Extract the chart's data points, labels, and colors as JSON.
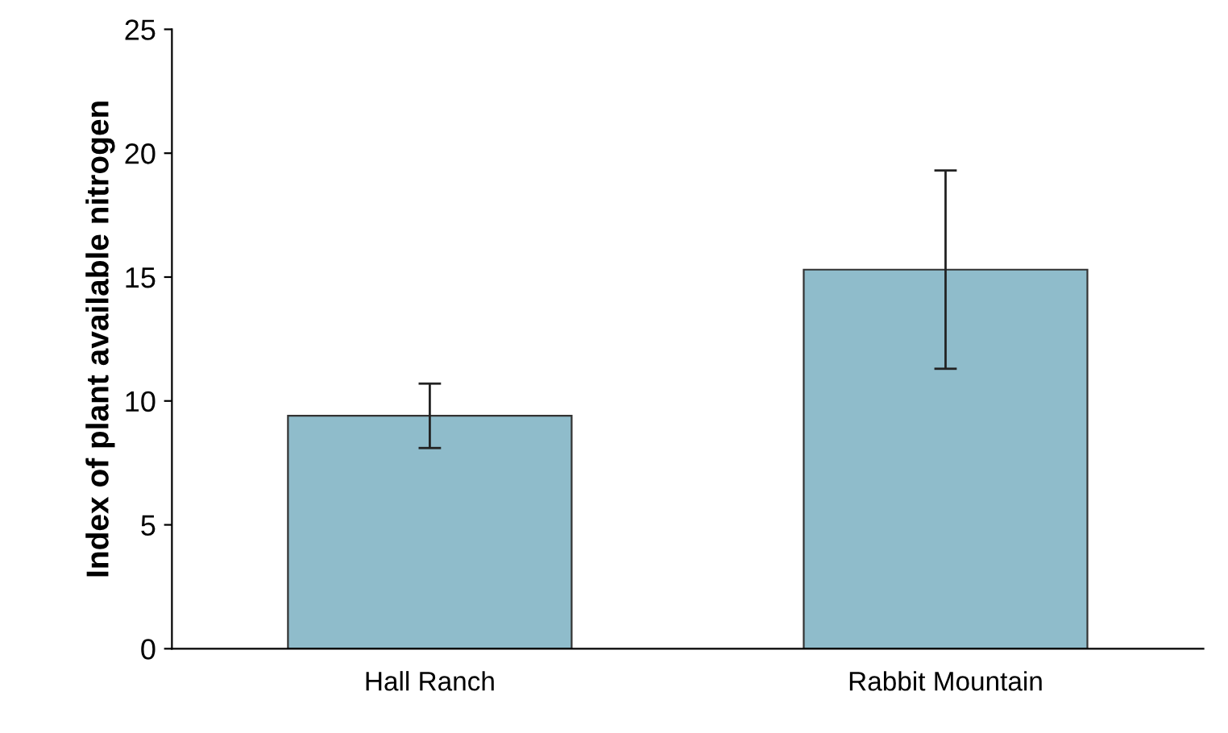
{
  "chart_data": {
    "type": "bar",
    "ylabel": "Index of plant available nitrogen",
    "categories": [
      "Hall Ranch",
      "Rabbit Mountain"
    ],
    "values": [
      9.4,
      15.3
    ],
    "errors": [
      [
        8.1,
        10.7
      ],
      [
        11.3,
        19.3
      ]
    ],
    "color": "#8fbccb",
    "ylim": [
      0,
      25
    ],
    "yticks": [
      0,
      5,
      10,
      15,
      20,
      25
    ],
    "grid": false
  }
}
